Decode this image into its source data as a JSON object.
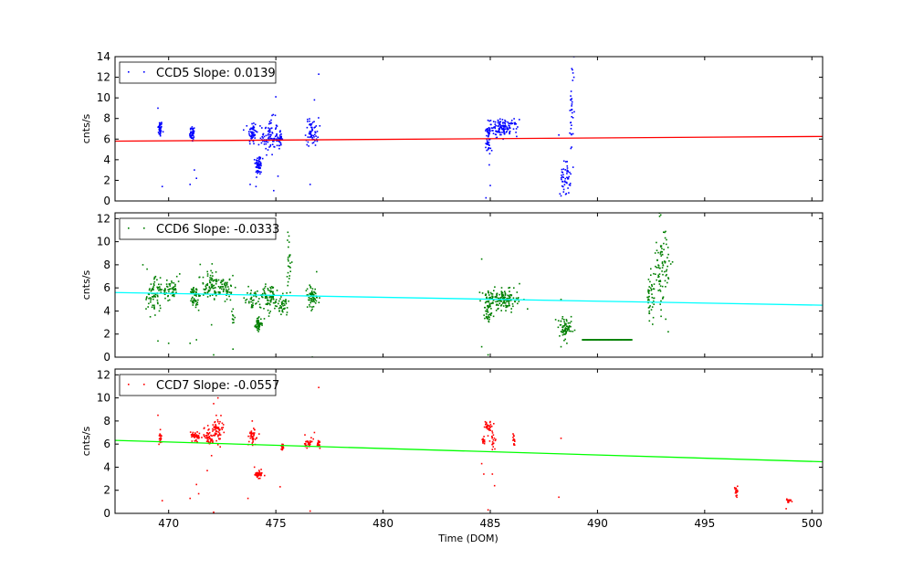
{
  "figure": {
    "xlabel": "Time (DOM)"
  },
  "chart_data": [
    {
      "type": "scatter",
      "xlim": [
        467.5,
        500.5
      ],
      "ylim": [
        0,
        14
      ],
      "xticks": [
        470,
        475,
        480,
        485,
        490,
        495,
        500
      ],
      "yticks": [
        0,
        2,
        4,
        6,
        8,
        10,
        12,
        14
      ],
      "ylabel": "cnts/s",
      "show_x_tick_labels": false,
      "legend": {
        "label": "CCD5 Slope: 0.0139",
        "placement": "top-left"
      },
      "point_color": "#0000ff",
      "fit_color": "#ff0000",
      "fit_line": {
        "x": [
          467.5,
          500.5
        ],
        "y": [
          5.8,
          6.26
        ]
      },
      "clusters": [
        {
          "x": 469.6,
          "y": 7.0,
          "n": 40,
          "sx": 0.05,
          "sy": 0.4
        },
        {
          "x": 471.1,
          "y": 6.5,
          "n": 40,
          "sx": 0.06,
          "sy": 0.4
        },
        {
          "x": 473.9,
          "y": 6.6,
          "n": 55,
          "sx": 0.1,
          "sy": 0.6
        },
        {
          "x": 474.2,
          "y": 3.5,
          "n": 55,
          "sx": 0.08,
          "sy": 0.5
        },
        {
          "x": 474.7,
          "y": 6.2,
          "n": 90,
          "sx": 0.2,
          "sy": 0.9
        },
        {
          "x": 475.2,
          "y": 6.0,
          "n": 30,
          "sx": 0.05,
          "sy": 0.4
        },
        {
          "x": 476.7,
          "y": 6.7,
          "n": 60,
          "sx": 0.15,
          "sy": 0.7
        },
        {
          "x": 484.9,
          "y": 5.8,
          "n": 40,
          "sx": 0.06,
          "sy": 0.8
        },
        {
          "x": 485.6,
          "y": 7.1,
          "n": 130,
          "sx": 0.35,
          "sy": 0.4
        },
        {
          "x": 488.5,
          "y": 2.2,
          "n": 50,
          "sx": 0.12,
          "sy": 0.8
        },
        {
          "x": 488.8,
          "y": 9.0,
          "n": 30,
          "sx": 0.04,
          "sy": 2.5
        }
      ],
      "outliers": [
        [
          469.5,
          9.0
        ],
        [
          469.7,
          1.4
        ],
        [
          471.0,
          1.6
        ],
        [
          471.2,
          3.0
        ],
        [
          471.3,
          2.2
        ],
        [
          473.8,
          1.6
        ],
        [
          474.1,
          2.3
        ],
        [
          475.0,
          10.1
        ],
        [
          475.1,
          2.4
        ],
        [
          474.9,
          1.0
        ],
        [
          476.6,
          1.6
        ],
        [
          476.8,
          9.8
        ],
        [
          477.0,
          12.3
        ],
        [
          484.8,
          0.3
        ],
        [
          485.0,
          1.5
        ],
        [
          488.3,
          0.5
        ],
        [
          488.9,
          14.0
        ],
        [
          488.9,
          12.0
        ],
        [
          488.2,
          6.4
        ]
      ]
    },
    {
      "type": "scatter",
      "xlim": [
        467.5,
        500.5
      ],
      "ylim": [
        0,
        12.5
      ],
      "xticks": [
        470,
        475,
        480,
        485,
        490,
        495,
        500
      ],
      "yticks": [
        0,
        2,
        4,
        6,
        8,
        10,
        12
      ],
      "ylabel": "cnts/s",
      "show_x_tick_labels": false,
      "legend": {
        "label": "CCD6 Slope: -0.0333",
        "placement": "top-left"
      },
      "point_color": "#007f00",
      "fit_color": "#00ffff",
      "fit_line": {
        "x": [
          467.5,
          500.5
        ],
        "y": [
          5.6,
          4.5
        ]
      },
      "clusters": [
        {
          "x": 469.3,
          "y": 5.6,
          "n": 70,
          "sx": 0.2,
          "sy": 0.9
        },
        {
          "x": 470.0,
          "y": 5.7,
          "n": 60,
          "sx": 0.25,
          "sy": 0.5
        },
        {
          "x": 471.2,
          "y": 5.2,
          "n": 50,
          "sx": 0.12,
          "sy": 0.5
        },
        {
          "x": 472.0,
          "y": 6.2,
          "n": 90,
          "sx": 0.25,
          "sy": 0.7
        },
        {
          "x": 472.7,
          "y": 5.9,
          "n": 50,
          "sx": 0.2,
          "sy": 0.5
        },
        {
          "x": 473.0,
          "y": 3.5,
          "n": 10,
          "sx": 0.04,
          "sy": 0.4
        },
        {
          "x": 473.9,
          "y": 5.0,
          "n": 40,
          "sx": 0.15,
          "sy": 0.4
        },
        {
          "x": 474.2,
          "y": 2.9,
          "n": 50,
          "sx": 0.08,
          "sy": 0.3
        },
        {
          "x": 474.7,
          "y": 5.2,
          "n": 80,
          "sx": 0.22,
          "sy": 0.6
        },
        {
          "x": 475.3,
          "y": 4.4,
          "n": 40,
          "sx": 0.15,
          "sy": 0.4
        },
        {
          "x": 475.6,
          "y": 7.8,
          "n": 25,
          "sx": 0.06,
          "sy": 1.6
        },
        {
          "x": 476.7,
          "y": 5.2,
          "n": 60,
          "sx": 0.15,
          "sy": 0.5
        },
        {
          "x": 484.9,
          "y": 4.3,
          "n": 60,
          "sx": 0.1,
          "sy": 0.7
        },
        {
          "x": 485.6,
          "y": 5.0,
          "n": 140,
          "sx": 0.4,
          "sy": 0.45
        },
        {
          "x": 488.5,
          "y": 2.5,
          "n": 70,
          "sx": 0.15,
          "sy": 0.4
        },
        {
          "x": 492.5,
          "y": 5.0,
          "n": 40,
          "sx": 0.12,
          "sy": 1.0
        },
        {
          "x": 493.0,
          "y": 8.0,
          "n": 90,
          "sx": 0.2,
          "sy": 2.0
        }
      ],
      "line_segments": [
        {
          "x0": 489.3,
          "x1": 491.6,
          "y": 1.5
        }
      ],
      "outliers": [
        [
          468.8,
          8.0
        ],
        [
          469.5,
          1.4
        ],
        [
          470.0,
          1.2
        ],
        [
          471.0,
          1.2
        ],
        [
          471.3,
          1.5
        ],
        [
          472.0,
          2.8
        ],
        [
          472.1,
          0.2
        ],
        [
          473.0,
          0.7
        ],
        [
          476.7,
          0.0
        ],
        [
          476.9,
          7.4
        ],
        [
          484.6,
          8.5
        ],
        [
          484.6,
          0.9
        ],
        [
          484.9,
          0.2
        ],
        [
          486.1,
          6.0
        ],
        [
          488.3,
          5.0
        ],
        [
          488.3,
          0.9
        ],
        [
          493.3,
          2.2
        ],
        [
          492.9,
          12.2
        ]
      ]
    },
    {
      "type": "scatter",
      "xlim": [
        467.5,
        500.5
      ],
      "ylim": [
        0,
        12.5
      ],
      "xticks": [
        470,
        475,
        480,
        485,
        490,
        495,
        500
      ],
      "yticks": [
        0,
        2,
        4,
        6,
        8,
        10,
        12
      ],
      "ylabel": "cnts/s",
      "show_x_tick_labels": true,
      "legend": {
        "label": "CCD7 Slope: -0.0557",
        "placement": "top-left"
      },
      "point_color": "#ff0000",
      "fit_color": "#00ff00",
      "fit_line": {
        "x": [
          467.5,
          500.5
        ],
        "y": [
          6.32,
          4.47
        ]
      },
      "clusters": [
        {
          "x": 469.6,
          "y": 6.5,
          "n": 20,
          "sx": 0.04,
          "sy": 0.3
        },
        {
          "x": 471.2,
          "y": 6.7,
          "n": 40,
          "sx": 0.12,
          "sy": 0.25
        },
        {
          "x": 471.9,
          "y": 6.6,
          "n": 50,
          "sx": 0.12,
          "sy": 0.35
        },
        {
          "x": 472.3,
          "y": 7.2,
          "n": 60,
          "sx": 0.12,
          "sy": 0.5
        },
        {
          "x": 473.9,
          "y": 6.6,
          "n": 40,
          "sx": 0.1,
          "sy": 0.4
        },
        {
          "x": 474.2,
          "y": 3.4,
          "n": 40,
          "sx": 0.1,
          "sy": 0.2
        },
        {
          "x": 475.3,
          "y": 5.7,
          "n": 20,
          "sx": 0.04,
          "sy": 0.2
        },
        {
          "x": 476.5,
          "y": 6.1,
          "n": 30,
          "sx": 0.1,
          "sy": 0.25
        },
        {
          "x": 477.0,
          "y": 5.9,
          "n": 20,
          "sx": 0.06,
          "sy": 0.2
        },
        {
          "x": 484.7,
          "y": 6.3,
          "n": 15,
          "sx": 0.04,
          "sy": 0.2
        },
        {
          "x": 484.9,
          "y": 7.5,
          "n": 30,
          "sx": 0.08,
          "sy": 0.25
        },
        {
          "x": 485.1,
          "y": 6.3,
          "n": 20,
          "sx": 0.06,
          "sy": 0.4
        },
        {
          "x": 486.1,
          "y": 6.3,
          "n": 15,
          "sx": 0.04,
          "sy": 0.3
        },
        {
          "x": 496.5,
          "y": 2.0,
          "n": 15,
          "sx": 0.05,
          "sy": 0.2
        },
        {
          "x": 498.9,
          "y": 1.1,
          "n": 15,
          "sx": 0.06,
          "sy": 0.08
        }
      ],
      "outliers": [
        [
          469.5,
          8.5
        ],
        [
          469.7,
          1.1
        ],
        [
          471.0,
          1.3
        ],
        [
          471.3,
          2.5
        ],
        [
          471.4,
          1.7
        ],
        [
          471.8,
          3.7
        ],
        [
          472.0,
          5.0
        ],
        [
          472.1,
          9.5
        ],
        [
          472.3,
          10.0
        ],
        [
          472.1,
          0.1
        ],
        [
          473.7,
          1.3
        ],
        [
          473.9,
          8.0
        ],
        [
          474.0,
          4.0
        ],
        [
          475.2,
          2.3
        ],
        [
          476.6,
          0.2
        ],
        [
          476.8,
          7.0
        ],
        [
          477.0,
          10.9
        ],
        [
          484.6,
          4.3
        ],
        [
          484.7,
          3.4
        ],
        [
          484.9,
          0.3
        ],
        [
          485.1,
          3.4
        ],
        [
          485.2,
          2.4
        ],
        [
          488.2,
          1.4
        ],
        [
          488.3,
          6.5
        ],
        [
          496.5,
          1.4
        ],
        [
          498.8,
          0.4
        ]
      ]
    }
  ]
}
